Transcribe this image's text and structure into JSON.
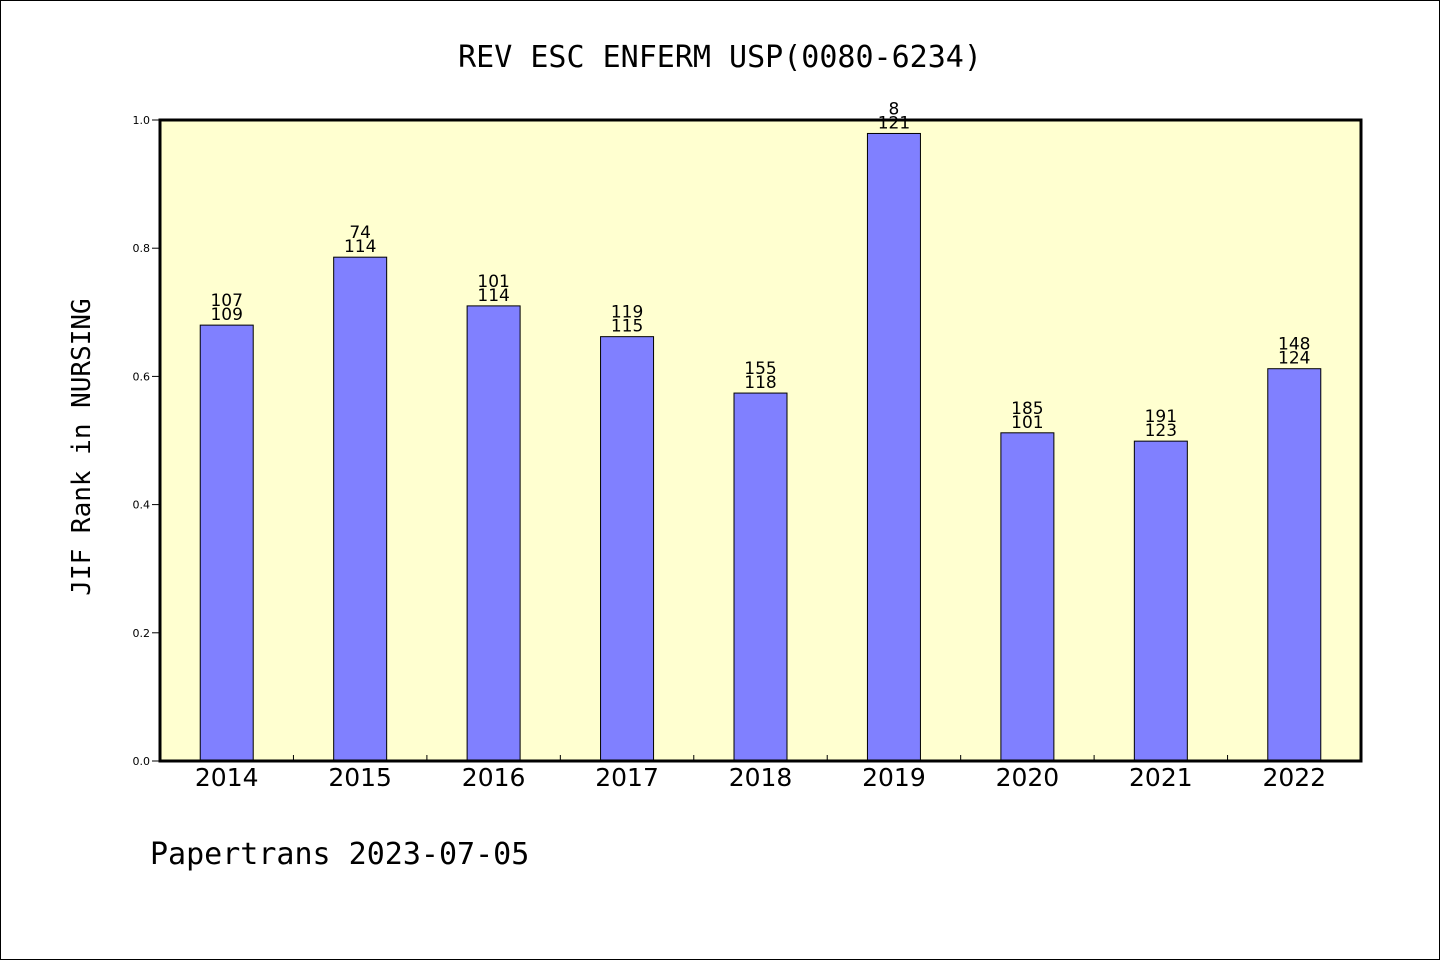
{
  "chart_data": {
    "type": "bar",
    "title": "REV ESC ENFERM USP(0080-6234)",
    "xlabel": "",
    "ylabel": "JIF Rank in NURSING",
    "ylim": [
      0,
      1.0
    ],
    "yticks": [
      "0.0",
      "0.2",
      "0.4",
      "0.6",
      "0.8",
      "1.0"
    ],
    "categories": [
      "2014",
      "2015",
      "2016",
      "2017",
      "2018",
      "2019",
      "2020",
      "2021",
      "2022"
    ],
    "values": [
      0.68,
      0.786,
      0.71,
      0.662,
      0.574,
      0.979,
      0.512,
      0.499,
      0.612
    ],
    "rank": [
      "107",
      "74",
      "101",
      "119",
      "155",
      "8",
      "185",
      "191",
      "148"
    ],
    "total": [
      "109",
      "114",
      "114",
      "115",
      "118",
      "121",
      "101",
      "123",
      "124"
    ],
    "grid": false,
    "colors": {
      "bar": "#8080ff",
      "plot_bg": "#ffffd0",
      "axis": "#000000"
    }
  },
  "footer": {
    "credit": "Papertrans 2023-07-05"
  }
}
